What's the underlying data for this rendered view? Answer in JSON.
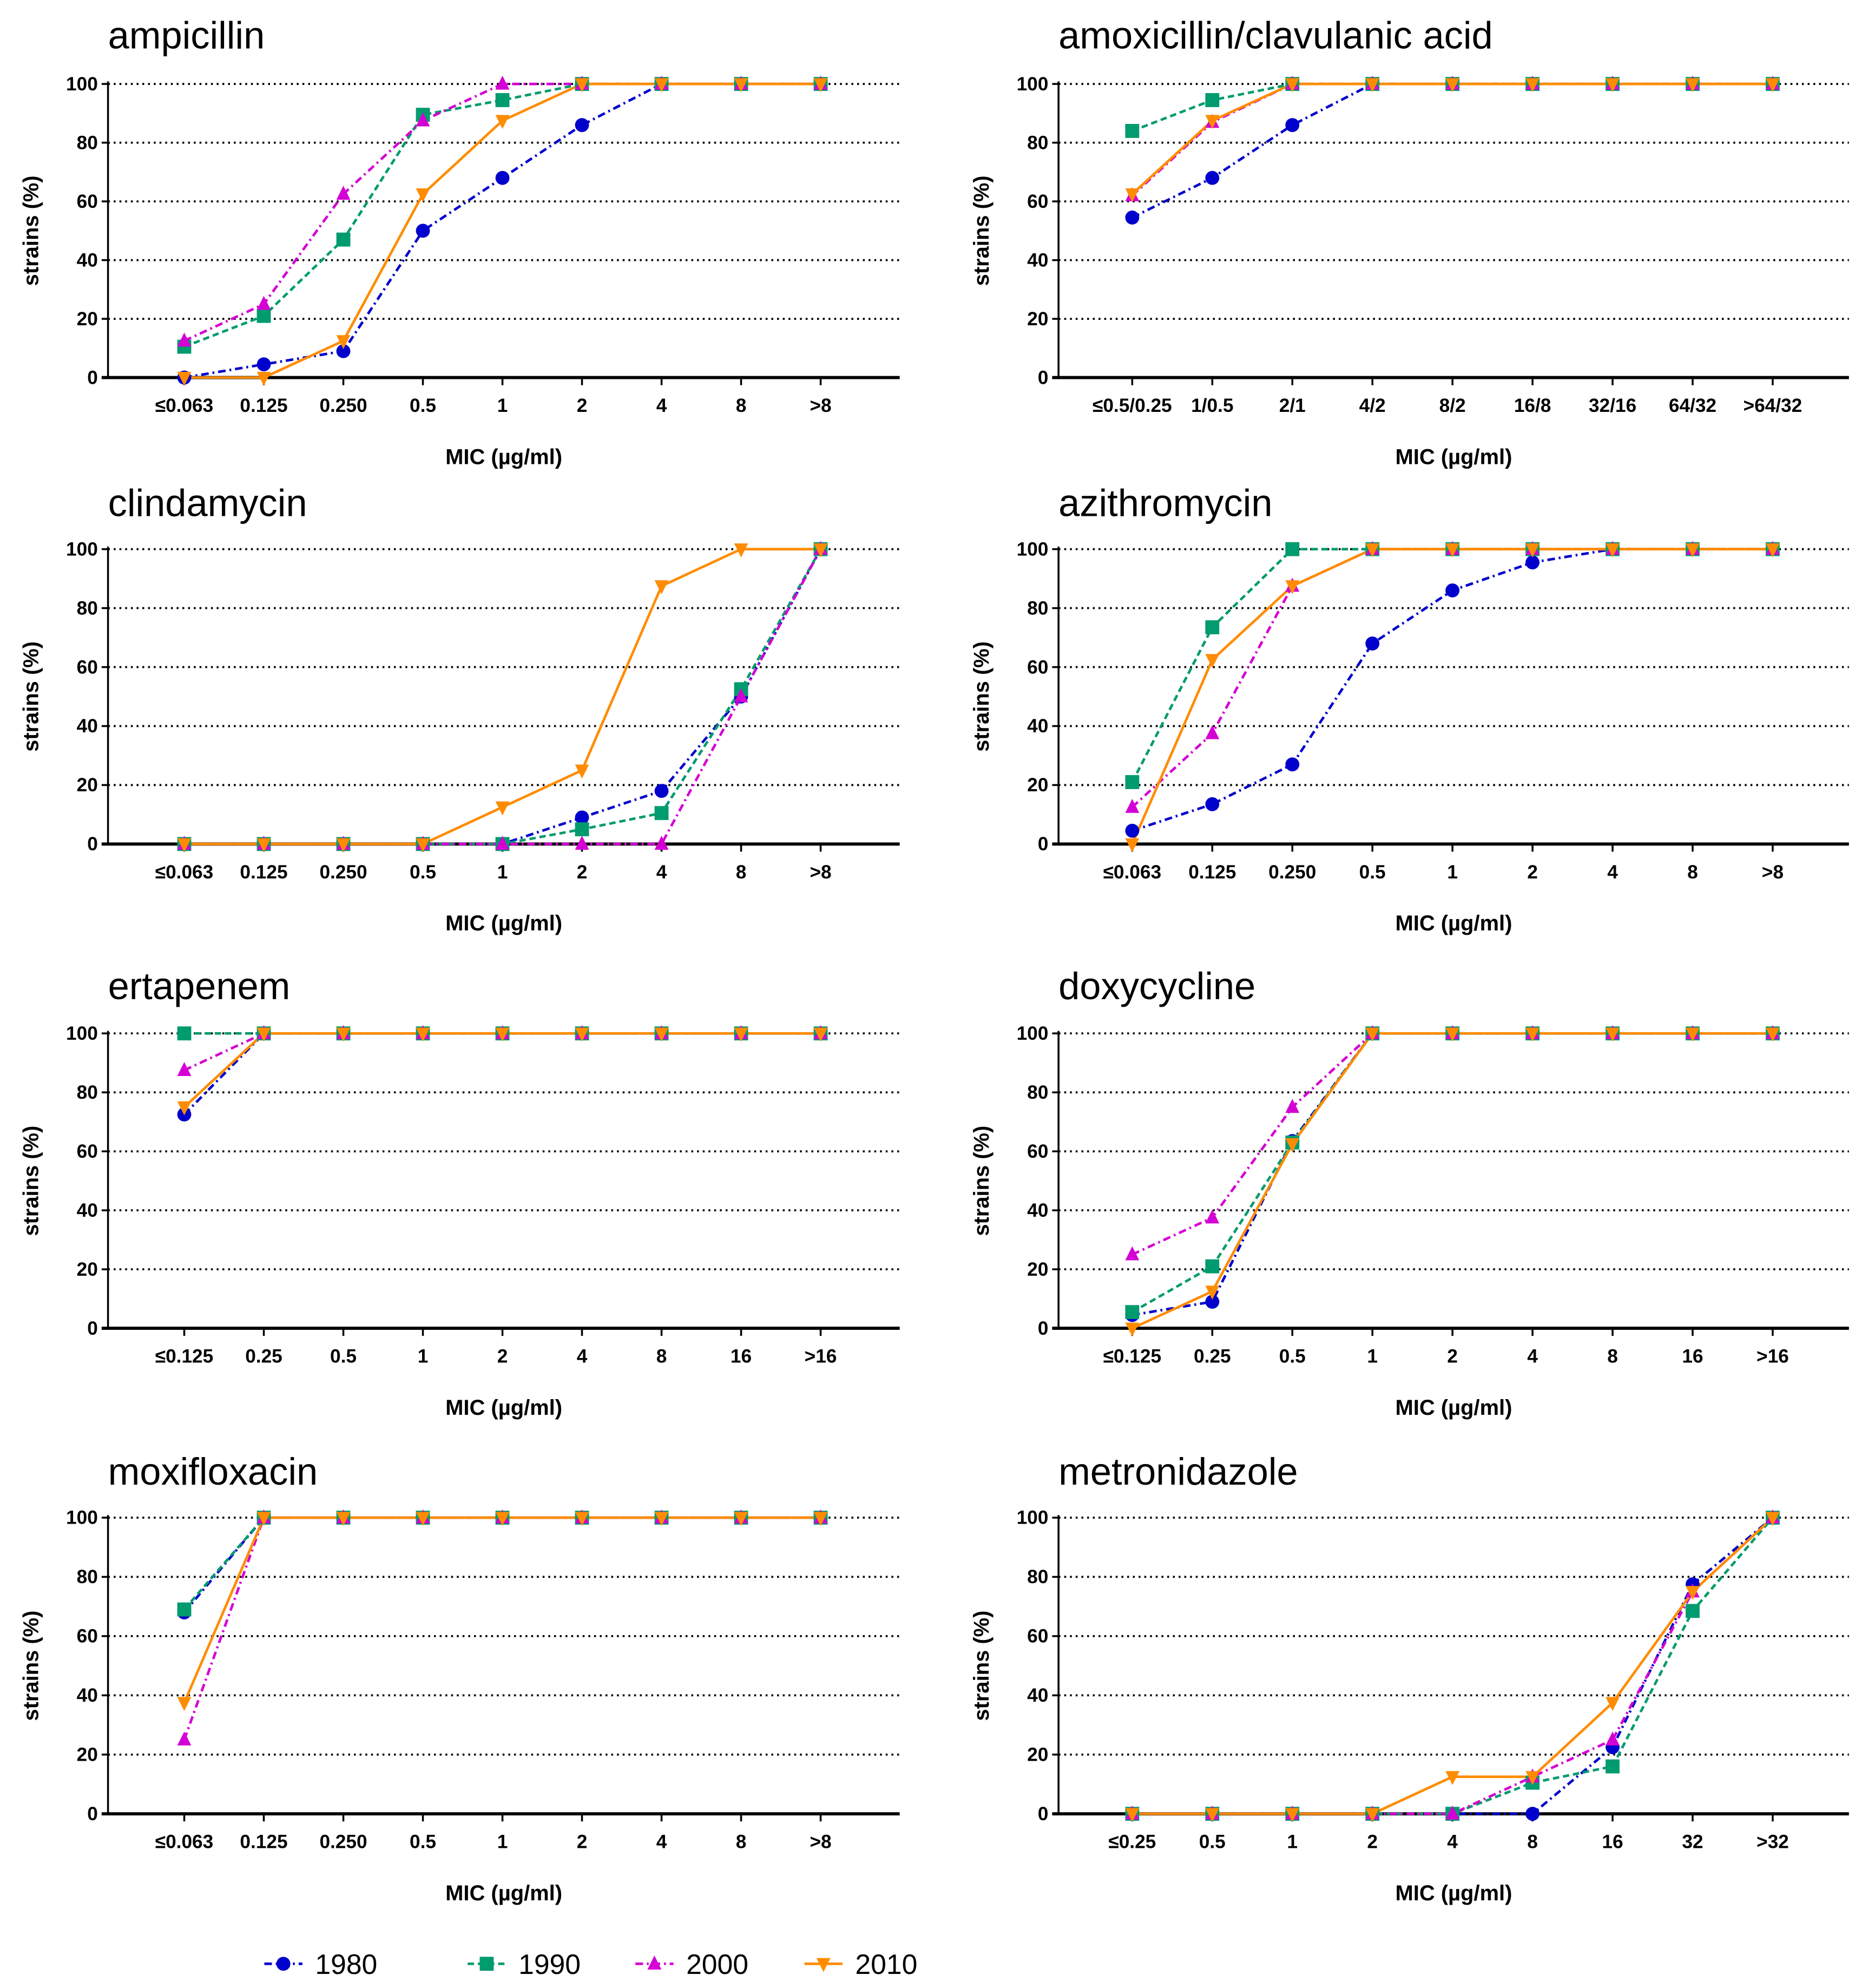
{
  "series_styles": [
    {
      "name": "1980",
      "color": "#0000CC",
      "marker": "circle",
      "line": "dash-dot"
    },
    {
      "name": "1990",
      "color": "#009B6E",
      "marker": "square",
      "line": "dashed"
    },
    {
      "name": "2000",
      "color": "#D400D4",
      "marker": "triangle-up",
      "line": "dash-dot"
    },
    {
      "name": "2010",
      "color": "#FF8C00",
      "marker": "triangle-down",
      "line": "solid"
    }
  ],
  "legend": [
    "1980",
    "1990",
    "2000",
    "2010"
  ],
  "chart_data": [
    {
      "type": "line",
      "title": "ampicillin",
      "xlabel": "MIC (µg/ml)",
      "ylabel": "strains (%)",
      "ylim": [
        0,
        100
      ],
      "yticks": [
        0,
        20,
        40,
        60,
        80,
        100
      ],
      "grid": "horizontal dotted",
      "categories": [
        "≤0.063",
        "0.125",
        "0.250",
        "0.5",
        "1",
        "2",
        "4",
        "8",
        ">8"
      ],
      "series": [
        {
          "name": "1980",
          "values": [
            0,
            4.5,
            9,
            50,
            68,
            86,
            100,
            100,
            100
          ]
        },
        {
          "name": "1990",
          "values": [
            10.5,
            21,
            47,
            89.5,
            94.5,
            100,
            100,
            100,
            100
          ]
        },
        {
          "name": "2000",
          "values": [
            12.5,
            25,
            62.5,
            87.5,
            100,
            100,
            100,
            100,
            100
          ]
        },
        {
          "name": "2010",
          "values": [
            0,
            0,
            12.5,
            62.5,
            87.5,
            100,
            100,
            100,
            100
          ]
        }
      ]
    },
    {
      "type": "line",
      "title": "amoxicillin/clavulanic acid",
      "xlabel": "MIC (µg/ml)",
      "ylabel": "strains (%)",
      "ylim": [
        0,
        100
      ],
      "yticks": [
        0,
        20,
        40,
        60,
        80,
        100
      ],
      "grid": "horizontal dotted",
      "categories": [
        "≤0.5/0.25",
        "1/0.5",
        "2/1",
        "4/2",
        "8/2",
        "16/8",
        "32/16",
        "64/32",
        ">64/32"
      ],
      "series": [
        {
          "name": "1980",
          "values": [
            54.5,
            68,
            86,
            100,
            100,
            100,
            100,
            100,
            100
          ]
        },
        {
          "name": "1990",
          "values": [
            84,
            94.5,
            100,
            100,
            100,
            100,
            100,
            100,
            100
          ]
        },
        {
          "name": "2000",
          "values": [
            62,
            87,
            100,
            100,
            100,
            100,
            100,
            100,
            100
          ]
        },
        {
          "name": "2010",
          "values": [
            62.5,
            87.5,
            100,
            100,
            100,
            100,
            100,
            100,
            100
          ]
        }
      ]
    },
    {
      "type": "line",
      "title": "clindamycin",
      "xlabel": "MIC (µg/ml)",
      "ylabel": "strains (%)",
      "ylim": [
        0,
        100
      ],
      "yticks": [
        0,
        20,
        40,
        60,
        80,
        100
      ],
      "grid": "horizontal dotted",
      "categories": [
        "≤0.063",
        "0.125",
        "0.250",
        "0.5",
        "1",
        "2",
        "4",
        "8",
        ">8"
      ],
      "series": [
        {
          "name": "1980",
          "values": [
            0,
            0,
            0,
            0,
            0,
            9,
            18,
            50,
            100
          ]
        },
        {
          "name": "1990",
          "values": [
            0,
            0,
            0,
            0,
            0,
            5,
            10.5,
            52.5,
            100
          ]
        },
        {
          "name": "2000",
          "values": [
            0,
            0,
            0,
            0,
            0,
            0,
            0,
            50,
            100
          ]
        },
        {
          "name": "2010",
          "values": [
            0,
            0,
            0,
            0,
            12.5,
            25,
            87.5,
            100,
            100
          ]
        }
      ]
    },
    {
      "type": "line",
      "title": "azithromycin",
      "xlabel": "MIC (µg/ml)",
      "ylabel": "strains (%)",
      "ylim": [
        0,
        100
      ],
      "yticks": [
        0,
        20,
        40,
        60,
        80,
        100
      ],
      "grid": "horizontal dotted",
      "categories": [
        "≤0.063",
        "0.125",
        "0.250",
        "0.5",
        "1",
        "2",
        "4",
        "8",
        ">8"
      ],
      "series": [
        {
          "name": "1980",
          "values": [
            4.5,
            13.5,
            27,
            68,
            86,
            95.5,
            100,
            100,
            100
          ]
        },
        {
          "name": "1990",
          "values": [
            21,
            73.5,
            100,
            100,
            100,
            100,
            100,
            100,
            100
          ]
        },
        {
          "name": "2000",
          "values": [
            12.5,
            37.5,
            87.5,
            100,
            100,
            100,
            100,
            100,
            100
          ]
        },
        {
          "name": "2010",
          "values": [
            0,
            62.5,
            87.5,
            100,
            100,
            100,
            100,
            100,
            100
          ]
        }
      ]
    },
    {
      "type": "line",
      "title": "ertapenem",
      "xlabel": "MIC (µg/ml)",
      "ylabel": "strains (%)",
      "ylim": [
        0,
        100
      ],
      "yticks": [
        0,
        20,
        40,
        60,
        80,
        100
      ],
      "grid": "horizontal dotted",
      "categories": [
        "≤0.125",
        "0.25",
        "0.5",
        "1",
        "2",
        "4",
        "8",
        "16",
        ">16"
      ],
      "series": [
        {
          "name": "1980",
          "values": [
            72.5,
            100,
            100,
            100,
            100,
            100,
            100,
            100,
            100
          ]
        },
        {
          "name": "1990",
          "values": [
            100,
            100,
            100,
            100,
            100,
            100,
            100,
            100,
            100
          ]
        },
        {
          "name": "2000",
          "values": [
            87.5,
            100,
            100,
            100,
            100,
            100,
            100,
            100,
            100
          ]
        },
        {
          "name": "2010",
          "values": [
            75,
            100,
            100,
            100,
            100,
            100,
            100,
            100,
            100
          ]
        }
      ]
    },
    {
      "type": "line",
      "title": "doxycycline",
      "xlabel": "MIC (µg/ml)",
      "ylabel": "strains (%)",
      "ylim": [
        0,
        100
      ],
      "yticks": [
        0,
        20,
        40,
        60,
        80,
        100
      ],
      "grid": "horizontal dotted",
      "categories": [
        "≤0.125",
        "0.25",
        "0.5",
        "1",
        "2",
        "4",
        "8",
        "16",
        ">16"
      ],
      "series": [
        {
          "name": "1980",
          "values": [
            4.5,
            9,
            63.5,
            100,
            100,
            100,
            100,
            100,
            100
          ]
        },
        {
          "name": "1990",
          "values": [
            5.5,
            21,
            63,
            100,
            100,
            100,
            100,
            100,
            100
          ]
        },
        {
          "name": "2000",
          "values": [
            25,
            37.5,
            75,
            100,
            100,
            100,
            100,
            100,
            100
          ]
        },
        {
          "name": "2010",
          "values": [
            0,
            12.5,
            62.5,
            100,
            100,
            100,
            100,
            100,
            100
          ]
        }
      ]
    },
    {
      "type": "line",
      "title": "moxifloxacin",
      "xlabel": "MIC (µg/ml)",
      "ylabel": "strains (%)",
      "ylim": [
        0,
        100
      ],
      "yticks": [
        0,
        20,
        40,
        60,
        80,
        100
      ],
      "grid": "horizontal dotted",
      "categories": [
        "≤0.063",
        "0.125",
        "0.250",
        "0.5",
        "1",
        "2",
        "4",
        "8",
        ">8"
      ],
      "series": [
        {
          "name": "1980",
          "values": [
            68,
            100,
            100,
            100,
            100,
            100,
            100,
            100,
            100
          ]
        },
        {
          "name": "1990",
          "values": [
            69,
            100,
            100,
            100,
            100,
            100,
            100,
            100,
            100
          ]
        },
        {
          "name": "2000",
          "values": [
            25,
            100,
            100,
            100,
            100,
            100,
            100,
            100,
            100
          ]
        },
        {
          "name": "2010",
          "values": [
            37.5,
            100,
            100,
            100,
            100,
            100,
            100,
            100,
            100
          ]
        }
      ]
    },
    {
      "type": "line",
      "title": "metronidazole",
      "xlabel": "MIC (µg/ml)",
      "ylabel": "strains (%)",
      "ylim": [
        0,
        100
      ],
      "yticks": [
        0,
        20,
        40,
        60,
        80,
        100
      ],
      "grid": "horizontal dotted",
      "categories": [
        "≤0.25",
        "0.5",
        "1",
        "2",
        "4",
        "8",
        "16",
        "32",
        ">32"
      ],
      "series": [
        {
          "name": "1980",
          "values": [
            0,
            0,
            0,
            0,
            0,
            0,
            22.5,
            77.5,
            100
          ]
        },
        {
          "name": "1990",
          "values": [
            0,
            0,
            0,
            0,
            0,
            10.5,
            16,
            68.5,
            100
          ]
        },
        {
          "name": "2000",
          "values": [
            0,
            0,
            0,
            0,
            0,
            12.5,
            25,
            75,
            100
          ]
        },
        {
          "name": "2010",
          "values": [
            0,
            0,
            0,
            0,
            12.5,
            12.5,
            37.5,
            75,
            100
          ]
        }
      ]
    }
  ]
}
